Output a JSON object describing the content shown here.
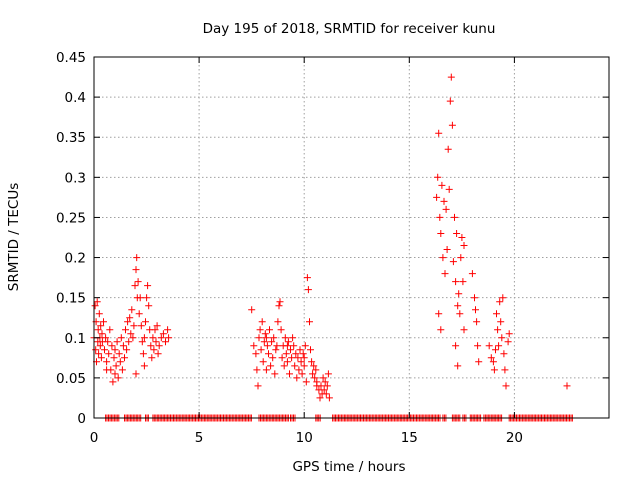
{
  "chart_data": {
    "type": "scatter",
    "title": "Day 195 of 2018, SRMTID for receiver kunu",
    "xlabel": "GPS time / hours",
    "ylabel": "SRMTID / TECUs",
    "xlim": [
      0,
      24.5
    ],
    "ylim": [
      0,
      0.45
    ],
    "grid": true,
    "marker": "plus",
    "color": "#ff0000",
    "x_ticks": [
      0,
      5,
      10,
      15,
      20
    ],
    "x_tick_labels": [
      "0",
      "5",
      "10",
      "15",
      "20"
    ],
    "y_ticks": [
      0,
      0.05,
      0.1,
      0.15,
      0.2,
      0.25,
      0.3,
      0.35,
      0.4,
      0.45
    ],
    "y_tick_labels": [
      "0",
      "0.05",
      "0.1",
      "0.15",
      "0.2",
      "0.25",
      "0.3",
      "0.35",
      "0.4",
      "0.45"
    ],
    "series": [
      {
        "name": "SRMTID",
        "points": [
          [
            0.0,
            0.1
          ],
          [
            0.05,
            0.14
          ],
          [
            0.08,
            0.085
          ],
          [
            0.1,
            0.12
          ],
          [
            0.12,
            0.07
          ],
          [
            0.15,
            0.145
          ],
          [
            0.18,
            0.095
          ],
          [
            0.2,
            0.11
          ],
          [
            0.22,
            0.08
          ],
          [
            0.25,
            0.13
          ],
          [
            0.28,
            0.1
          ],
          [
            0.3,
            0.09
          ],
          [
            0.32,
            0.115
          ],
          [
            0.35,
            0.075
          ],
          [
            0.38,
            0.105
          ],
          [
            0.4,
            0.095
          ],
          [
            0.45,
            0.12
          ],
          [
            0.5,
            0.085
          ],
          [
            0.55,
            0.1
          ],
          [
            0.6,
            0.07
          ],
          [
            0.65,
            0.095
          ],
          [
            0.7,
            0.08
          ],
          [
            0.75,
            0.11
          ],
          [
            0.8,
            0.06
          ],
          [
            0.85,
            0.09
          ],
          [
            0.9,
            0.045
          ],
          [
            0.95,
            0.075
          ],
          [
            1.0,
            0.085
          ],
          [
            1.05,
            0.065
          ],
          [
            1.1,
            0.095
          ],
          [
            1.15,
            0.05
          ],
          [
            1.2,
            0.08
          ],
          [
            1.25,
            0.07
          ],
          [
            1.3,
            0.1
          ],
          [
            1.35,
            0.06
          ],
          [
            1.4,
            0.09
          ],
          [
            1.45,
            0.075
          ],
          [
            1.5,
            0.11
          ],
          [
            1.55,
            0.085
          ],
          [
            1.6,
            0.12
          ],
          [
            1.65,
            0.095
          ],
          [
            1.7,
            0.125
          ],
          [
            1.75,
            0.105
          ],
          [
            1.8,
            0.135
          ],
          [
            1.85,
            0.1
          ],
          [
            1.9,
            0.115
          ],
          [
            1.95,
            0.165
          ],
          [
            2.0,
            0.185
          ],
          [
            2.03,
            0.2
          ],
          [
            2.06,
            0.15
          ],
          [
            2.1,
            0.17
          ],
          [
            2.15,
            0.13
          ],
          [
            2.2,
            0.15
          ],
          [
            2.25,
            0.115
          ],
          [
            2.3,
            0.095
          ],
          [
            2.35,
            0.08
          ],
          [
            2.4,
            0.1
          ],
          [
            2.45,
            0.12
          ],
          [
            2.5,
            0.15
          ],
          [
            2.55,
            0.165
          ],
          [
            2.6,
            0.14
          ],
          [
            2.65,
            0.11
          ],
          [
            2.7,
            0.09
          ],
          [
            2.75,
            0.075
          ],
          [
            2.8,
            0.1
          ],
          [
            2.85,
            0.085
          ],
          [
            2.9,
            0.11
          ],
          [
            2.95,
            0.095
          ],
          [
            3.0,
            0.115
          ],
          [
            3.05,
            0.08
          ],
          [
            3.1,
            0.09
          ],
          [
            3.2,
            0.1
          ],
          [
            3.3,
            0.105
          ],
          [
            3.4,
            0.095
          ],
          [
            3.5,
            0.11
          ],
          [
            3.55,
            0.1
          ],
          [
            0.6,
            0.06
          ],
          [
            1.0,
            0.055
          ],
          [
            2.0,
            0.055
          ],
          [
            2.4,
            0.065
          ],
          [
            7.5,
            0.135
          ],
          [
            7.6,
            0.09
          ],
          [
            7.7,
            0.08
          ],
          [
            7.75,
            0.06
          ],
          [
            7.8,
            0.04
          ],
          [
            7.85,
            0.1
          ],
          [
            7.9,
            0.11
          ],
          [
            7.95,
            0.085
          ],
          [
            8.0,
            0.12
          ],
          [
            8.05,
            0.07
          ],
          [
            8.1,
            0.095
          ],
          [
            8.15,
            0.105
          ],
          [
            8.2,
            0.06
          ],
          [
            8.25,
            0.09
          ],
          [
            8.3,
            0.08
          ],
          [
            8.35,
            0.11
          ],
          [
            8.4,
            0.065
          ],
          [
            8.45,
            0.095
          ],
          [
            8.5,
            0.075
          ],
          [
            8.55,
            0.1
          ],
          [
            8.6,
            0.055
          ],
          [
            8.65,
            0.085
          ],
          [
            8.7,
            0.09
          ],
          [
            8.75,
            0.12
          ],
          [
            8.8,
            0.14
          ],
          [
            8.85,
            0.145
          ],
          [
            8.9,
            0.11
          ],
          [
            8.95,
            0.075
          ],
          [
            9.0,
            0.09
          ],
          [
            9.05,
            0.065
          ],
          [
            9.1,
            0.1
          ],
          [
            9.15,
            0.08
          ],
          [
            9.2,
            0.07
          ],
          [
            9.25,
            0.095
          ],
          [
            9.3,
            0.055
          ],
          [
            9.35,
            0.085
          ],
          [
            9.4,
            0.075
          ],
          [
            9.45,
            0.1
          ],
          [
            9.5,
            0.09
          ],
          [
            9.55,
            0.065
          ],
          [
            9.6,
            0.08
          ],
          [
            9.65,
            0.05
          ],
          [
            9.7,
            0.075
          ],
          [
            9.75,
            0.06
          ],
          [
            9.8,
            0.085
          ],
          [
            9.85,
            0.07
          ],
          [
            9.9,
            0.055
          ],
          [
            9.95,
            0.08
          ],
          [
            10.0,
            0.065
          ],
          [
            10.05,
            0.09
          ],
          [
            10.1,
            0.045
          ],
          [
            10.15,
            0.175
          ],
          [
            10.2,
            0.16
          ],
          [
            10.25,
            0.12
          ],
          [
            10.3,
            0.085
          ],
          [
            10.35,
            0.07
          ],
          [
            10.4,
            0.055
          ],
          [
            10.45,
            0.065
          ],
          [
            10.5,
            0.05
          ],
          [
            10.55,
            0.06
          ],
          [
            10.6,
            0.045
          ],
          [
            10.7,
            0.035
          ],
          [
            10.75,
            0.025
          ],
          [
            10.8,
            0.04
          ],
          [
            10.85,
            0.03
          ],
          [
            10.9,
            0.05
          ],
          [
            10.95,
            0.035
          ],
          [
            11.0,
            0.045
          ],
          [
            11.05,
            0.03
          ],
          [
            11.1,
            0.04
          ],
          [
            11.15,
            0.055
          ],
          [
            11.2,
            0.025
          ],
          [
            8.2,
            0.1
          ],
          [
            9.2,
            0.09
          ],
          [
            10.0,
            0.075
          ],
          [
            10.6,
            0.04
          ],
          [
            16.3,
            0.275
          ],
          [
            16.35,
            0.3
          ],
          [
            16.4,
            0.355
          ],
          [
            16.45,
            0.25
          ],
          [
            16.5,
            0.23
          ],
          [
            16.55,
            0.29
          ],
          [
            16.6,
            0.2
          ],
          [
            16.65,
            0.27
          ],
          [
            16.7,
            0.18
          ],
          [
            16.75,
            0.26
          ],
          [
            16.8,
            0.21
          ],
          [
            16.85,
            0.335
          ],
          [
            16.9,
            0.285
          ],
          [
            16.95,
            0.395
          ],
          [
            17.0,
            0.425
          ],
          [
            17.05,
            0.365
          ],
          [
            17.1,
            0.195
          ],
          [
            17.15,
            0.25
          ],
          [
            17.2,
            0.17
          ],
          [
            17.25,
            0.23
          ],
          [
            17.3,
            0.14
          ],
          [
            17.35,
            0.155
          ],
          [
            17.4,
            0.13
          ],
          [
            17.45,
            0.2
          ],
          [
            17.5,
            0.225
          ],
          [
            17.55,
            0.17
          ],
          [
            17.6,
            0.11
          ],
          [
            16.4,
            0.13
          ],
          [
            16.5,
            0.11
          ],
          [
            17.2,
            0.09
          ],
          [
            17.3,
            0.065
          ],
          [
            17.6,
            0.215
          ],
          [
            18.0,
            0.18
          ],
          [
            18.1,
            0.15
          ],
          [
            18.15,
            0.135
          ],
          [
            18.2,
            0.12
          ],
          [
            18.25,
            0.09
          ],
          [
            18.3,
            0.07
          ],
          [
            18.8,
            0.09
          ],
          [
            18.9,
            0.075
          ],
          [
            19.0,
            0.07
          ],
          [
            19.05,
            0.06
          ],
          [
            19.1,
            0.085
          ],
          [
            19.15,
            0.13
          ],
          [
            19.2,
            0.11
          ],
          [
            19.25,
            0.09
          ],
          [
            19.3,
            0.145
          ],
          [
            19.35,
            0.12
          ],
          [
            19.4,
            0.1
          ],
          [
            19.45,
            0.15
          ],
          [
            19.5,
            0.08
          ],
          [
            19.55,
            0.06
          ],
          [
            19.6,
            0.04
          ],
          [
            19.7,
            0.095
          ],
          [
            19.75,
            0.105
          ],
          [
            22.5,
            0.04
          ]
        ],
        "zero_runs": [
          [
            0.55,
            1.2
          ],
          [
            1.45,
            2.25
          ],
          [
            2.45,
            2.65
          ],
          [
            2.8,
            7.55
          ],
          [
            7.85,
            9.25
          ],
          [
            9.35,
            9.6
          ],
          [
            10.55,
            10.8
          ],
          [
            11.35,
            16.5
          ],
          [
            16.6,
            16.8
          ],
          [
            17.05,
            17.4
          ],
          [
            17.55,
            17.75
          ],
          [
            17.9,
            18.45
          ],
          [
            18.55,
            19.45
          ],
          [
            19.75,
            22.8
          ]
        ]
      }
    ]
  }
}
